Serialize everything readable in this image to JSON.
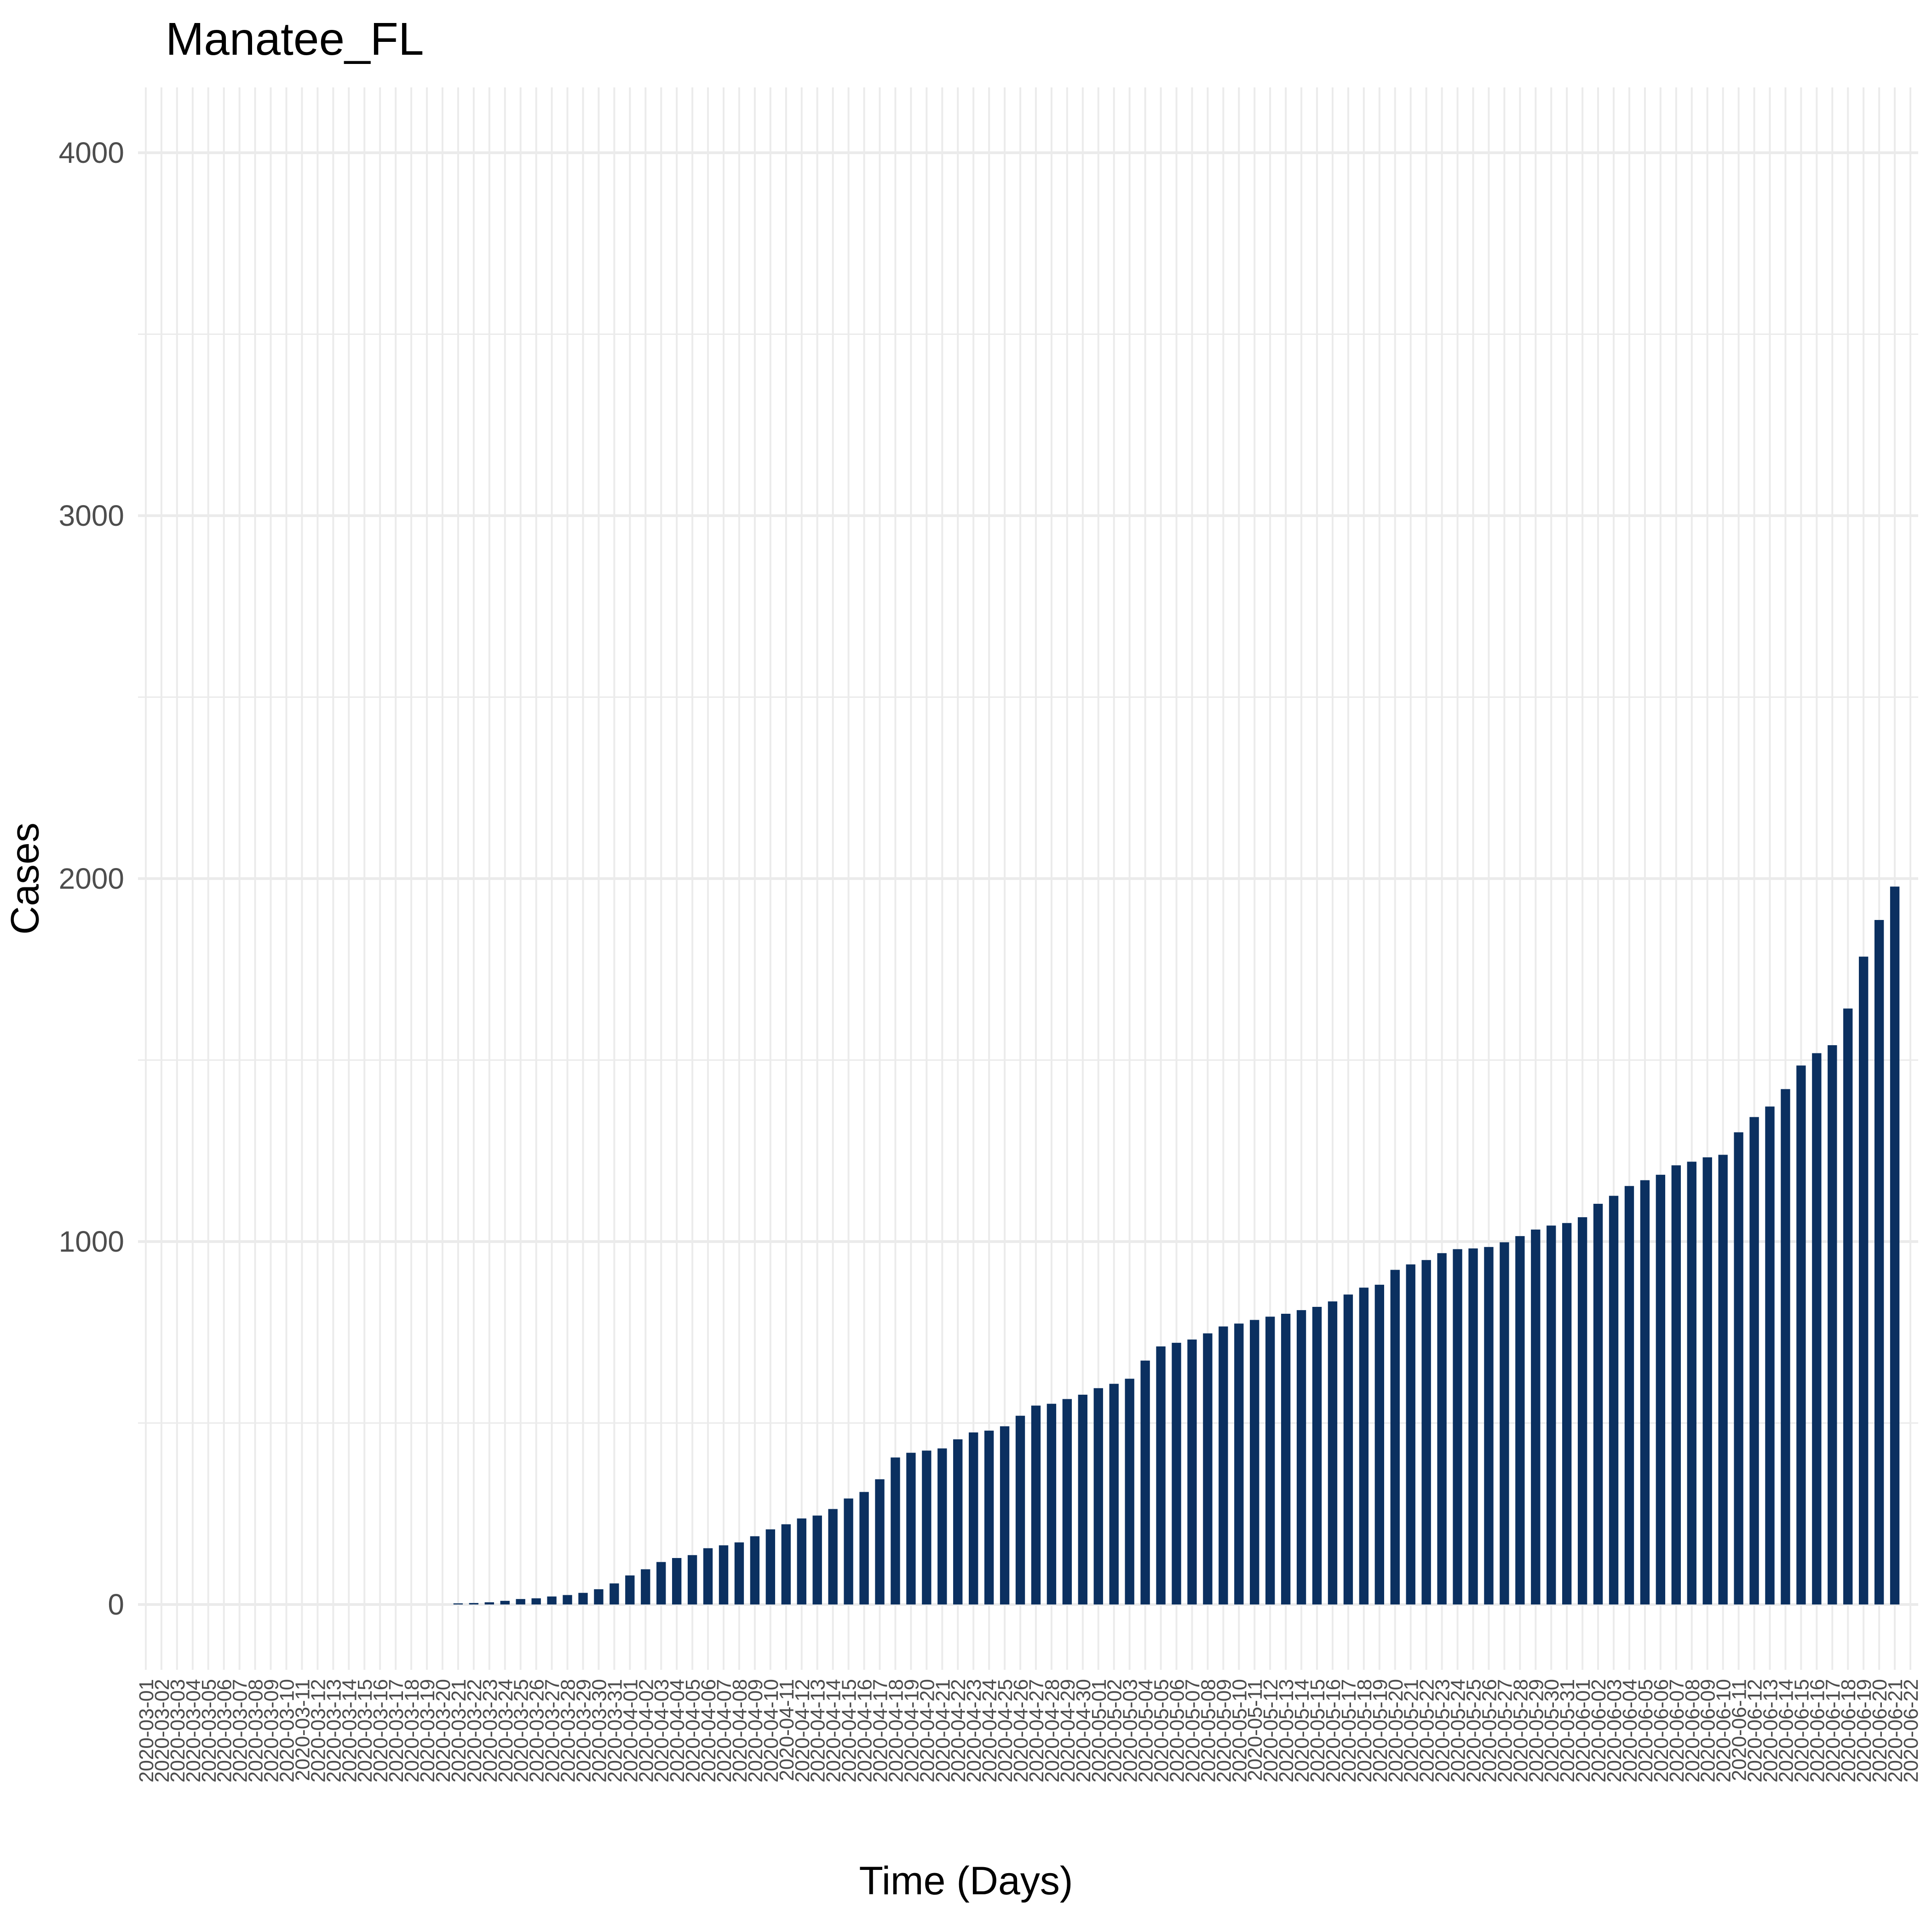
{
  "chart_data": {
    "type": "bar",
    "title": "Manatee_FL",
    "xlabel": "Time (Days)",
    "ylabel": "Cases",
    "x_start_date": "2020-03-01",
    "x_end_date": "2020-06-22",
    "ylim": [
      -180,
      4180
    ],
    "yticks": [
      0,
      1000,
      2000,
      3000,
      4000
    ],
    "grid": true,
    "legend": "none",
    "bar_color": "#0b3060",
    "values": [
      0,
      0,
      0,
      0,
      0,
      0,
      0,
      0,
      0,
      0,
      0,
      0,
      0,
      0,
      0,
      0,
      0,
      0,
      0,
      0,
      3,
      4,
      6,
      10,
      15,
      17,
      22,
      26,
      32,
      42,
      58,
      80,
      97,
      117,
      128,
      136,
      155,
      163,
      171,
      188,
      207,
      221,
      237,
      245,
      263,
      292,
      310,
      345,
      405,
      418,
      424,
      430,
      455,
      474,
      479,
      491,
      520,
      548,
      553,
      566,
      578,
      596,
      608,
      622,
      672,
      711,
      721,
      730,
      747,
      766,
      774,
      784,
      793,
      801,
      811,
      820,
      835,
      854,
      873,
      881,
      922,
      937,
      949,
      968,
      979,
      981,
      985,
      998,
      1015,
      1033,
      1044,
      1051,
      1067,
      1104,
      1126,
      1153,
      1169,
      1184,
      1210,
      1220,
      1232,
      1239,
      1301,
      1343,
      1372,
      1420,
      1485,
      1519,
      1541,
      1642,
      1785,
      1886,
      1978
    ]
  }
}
